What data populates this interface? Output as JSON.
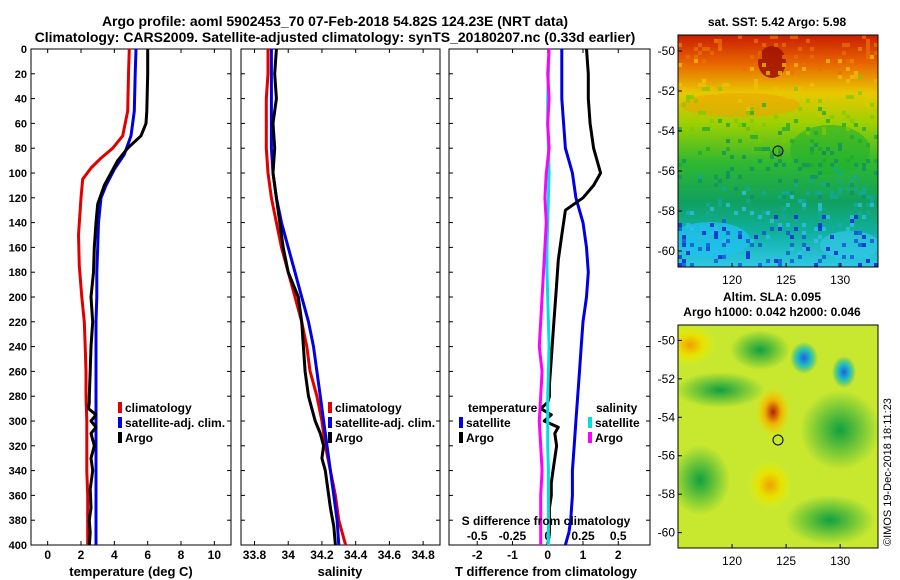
{
  "title_line1": "Argo profile: aoml 5902453_70 07-Feb-2018 54.82S 124.23E (NRT data)",
  "title_line2": "Climatology: CARS2009. Satellite-adjusted climatology: synTS_20180207.nc (0.33d earlier)",
  "watermark": "©IMOS 19-Dec-2018 18:11:23",
  "colors": {
    "climatology": "#e00000",
    "satellite": "#0000e0",
    "argo": "#000000",
    "s_satellite": "#00e0e0",
    "s_argo": "#ff00ff"
  },
  "chart_data": [
    {
      "type": "line",
      "title": "",
      "xlabel": "temperature (deg C)",
      "ylabel": "",
      "xlim": [
        -1,
        11
      ],
      "ylim": [
        400,
        0
      ],
      "xticks": [
        "0",
        "2",
        "4",
        "6",
        "8",
        "10"
      ],
      "yticks": [
        "0",
        "20",
        "40",
        "60",
        "80",
        "100",
        "120",
        "140",
        "160",
        "180",
        "200",
        "220",
        "240",
        "260",
        "280",
        "300",
        "320",
        "340",
        "360",
        "380",
        "400"
      ],
      "legend": [
        "climatology",
        "satellite-adj. clim.",
        "Argo"
      ],
      "series": [
        {
          "name": "climatology",
          "x": [
            4.9,
            4.85,
            4.8,
            4.5,
            3.9,
            3.2,
            2.6,
            2.1,
            2.0,
            1.85,
            1.9,
            2.05,
            2.2,
            2.25,
            2.3,
            2.3,
            2.35,
            2.35,
            2.35,
            2.4,
            2.4,
            2.4
          ],
          "y": [
            0,
            20,
            50,
            70,
            80,
            88,
            96,
            105,
            120,
            150,
            175,
            200,
            220,
            240,
            260,
            280,
            300,
            320,
            340,
            360,
            380,
            400
          ]
        },
        {
          "name": "satellite-adj. clim.",
          "x": [
            5.3,
            5.25,
            5.2,
            5.0,
            4.6,
            4.0,
            3.5,
            3.2,
            3.05,
            3.0,
            2.95,
            2.95,
            2.9,
            2.9,
            2.9,
            2.9,
            2.9,
            2.9,
            2.9,
            2.9,
            2.9
          ],
          "y": [
            0,
            20,
            50,
            70,
            85,
            97,
            110,
            120,
            140,
            160,
            180,
            200,
            220,
            240,
            260,
            280,
            300,
            320,
            340,
            360,
            400
          ]
        },
        {
          "name": "Argo",
          "x": [
            6.0,
            6.0,
            5.95,
            5.9,
            5.6,
            4.8,
            4.2,
            3.8,
            3.4,
            3.0,
            2.9,
            2.8,
            2.75,
            2.6,
            2.7,
            2.6,
            2.55,
            2.5,
            2.5,
            2.45,
            2.9,
            2.6,
            2.9,
            2.6,
            2.8,
            2.6,
            2.7,
            2.55,
            2.6,
            2.5,
            2.55,
            2.5
          ],
          "y": [
            0,
            20,
            50,
            60,
            70,
            80,
            90,
            100,
            110,
            125,
            140,
            160,
            180,
            200,
            220,
            240,
            260,
            280,
            285,
            290,
            295,
            300,
            305,
            310,
            320,
            330,
            340,
            355,
            370,
            380,
            390,
            400
          ]
        }
      ]
    },
    {
      "type": "line",
      "xlabel": "salinity",
      "xlim": [
        33.72,
        34.9
      ],
      "ylim": [
        400,
        0
      ],
      "xticks": [
        "33.8",
        "34",
        "34.2",
        "34.4",
        "34.6",
        "34.8"
      ],
      "legend": [
        "climatology",
        "satellite-adj. clim.",
        "Argo"
      ],
      "series": [
        {
          "name": "climatology",
          "x": [
            33.88,
            33.88,
            33.87,
            33.87,
            33.87,
            33.88,
            33.9,
            33.93,
            33.96,
            34.0,
            34.04,
            34.08,
            34.11,
            34.13,
            34.17,
            34.2,
            34.22,
            34.25,
            34.28,
            34.3,
            34.32,
            34.34
          ],
          "y": [
            0,
            20,
            40,
            60,
            80,
            100,
            120,
            140,
            160,
            180,
            200,
            220,
            240,
            260,
            280,
            300,
            320,
            340,
            360,
            380,
            390,
            400
          ]
        },
        {
          "name": "satellite-adj. clim.",
          "x": [
            33.9,
            33.9,
            33.9,
            33.9,
            33.9,
            33.91,
            33.93,
            33.96,
            34.0,
            34.04,
            34.08,
            34.12,
            34.15,
            34.17,
            34.19,
            34.21,
            34.23,
            34.25,
            34.27,
            34.29,
            34.3
          ],
          "y": [
            0,
            20,
            40,
            60,
            80,
            100,
            120,
            140,
            160,
            180,
            200,
            220,
            240,
            260,
            280,
            300,
            320,
            340,
            360,
            380,
            400
          ]
        },
        {
          "name": "Argo",
          "x": [
            33.93,
            33.92,
            33.93,
            33.91,
            33.92,
            33.91,
            33.93,
            33.95,
            33.97,
            34.0,
            34.06,
            34.08,
            34.09,
            34.1,
            34.12,
            34.16,
            34.19,
            34.21,
            34.2,
            34.22,
            34.24,
            34.25,
            34.27,
            34.28
          ],
          "y": [
            0,
            20,
            40,
            60,
            80,
            100,
            120,
            140,
            160,
            180,
            200,
            220,
            240,
            260,
            280,
            300,
            310,
            320,
            330,
            340,
            360,
            370,
            385,
            400
          ]
        }
      ]
    },
    {
      "type": "line",
      "xlabel": "T difference from climatology",
      "top_xlabel": "S difference from climatology",
      "xlim": [
        -2.8,
        2.9
      ],
      "ylim": [
        400,
        0
      ],
      "xticks": [
        "-2",
        "-1",
        "0",
        "1",
        "2"
      ],
      "top_xticks": [
        "-0.5",
        "-0.25",
        "0",
        "0.25",
        "0.5"
      ],
      "legend_temperature": {
        "title": "temperature",
        "items": [
          "satellite",
          "Argo"
        ]
      },
      "legend_salinity": {
        "title": "salinity",
        "items": [
          "satellite",
          "Argo"
        ]
      },
      "series": [
        {
          "name": "T satellite",
          "x": [
            0.4,
            0.4,
            0.4,
            0.45,
            0.5,
            0.7,
            0.8,
            1.0,
            1.1,
            1.15,
            1.1,
            1.0,
            0.95,
            0.9,
            0.85,
            0.8,
            0.75,
            0.7,
            0.7,
            0.65,
            0.6,
            0.55,
            0.5
          ],
          "y": [
            0,
            20,
            40,
            60,
            80,
            100,
            120,
            140,
            160,
            180,
            200,
            220,
            240,
            260,
            280,
            300,
            320,
            340,
            360,
            380,
            390,
            395,
            400
          ]
        },
        {
          "name": "T Argo",
          "x": [
            1.1,
            1.15,
            1.15,
            1.2,
            1.3,
            1.5,
            1.3,
            1.0,
            0.5,
            0.4,
            0.3,
            0.25,
            0.2,
            0.15,
            0.1,
            0.05,
            0.05,
            0.0,
            -0.2,
            0.1,
            -0.1,
            0.3,
            0.2,
            0.25,
            0.2,
            0.15,
            0.1,
            0.1,
            0.05,
            0.05,
            0.0
          ],
          "y": [
            0,
            20,
            40,
            60,
            80,
            100,
            110,
            120,
            130,
            150,
            170,
            190,
            210,
            230,
            250,
            270,
            280,
            285,
            290,
            295,
            300,
            305,
            310,
            320,
            330,
            340,
            350,
            360,
            370,
            390,
            400
          ]
        },
        {
          "name": "S satellite",
          "x": [
            0.01,
            0.005,
            0.0,
            0.0,
            0.005,
            0.01,
            0.005,
            0.0,
            -0.005,
            -0.005,
            0.0,
            0.005,
            0.01,
            0.005,
            0.0,
            0.0,
            0.0,
            0.005,
            0.005,
            0.005
          ],
          "y": [
            0,
            20,
            40,
            60,
            80,
            100,
            120,
            140,
            160,
            180,
            200,
            220,
            240,
            260,
            280,
            300,
            320,
            340,
            360,
            400
          ]
        },
        {
          "name": "S Argo",
          "x": [
            0.01,
            0.0,
            0.01,
            0.0,
            0.01,
            -0.01,
            -0.02,
            -0.01,
            -0.02,
            -0.03,
            -0.04,
            -0.05,
            -0.06,
            -0.04,
            -0.05,
            -0.06,
            -0.05,
            -0.04,
            -0.05,
            -0.05,
            -0.05
          ],
          "y": [
            0,
            20,
            40,
            60,
            80,
            100,
            120,
            140,
            160,
            180,
            200,
            220,
            240,
            260,
            280,
            300,
            320,
            340,
            360,
            380,
            400
          ]
        }
      ]
    },
    {
      "type": "heatmap",
      "title": "sat. SST: 5.42 Argo: 5.98",
      "xticks": [
        "120",
        "125",
        "130"
      ],
      "yticks": [
        "-50",
        "-52",
        "-54",
        "-56",
        "-58",
        "-60"
      ],
      "xlim": [
        115,
        133.5
      ],
      "ylim": [
        -60.8,
        -49.2
      ],
      "marker": {
        "lon": 124.23,
        "lat": -54.82
      }
    },
    {
      "type": "heatmap",
      "title": "Altim. SLA: 0.095",
      "subtitle": "Argo h1000: 0.042 h2000: 0.046",
      "xticks": [
        "120",
        "125",
        "130"
      ],
      "yticks": [
        "-50",
        "-52",
        "-54",
        "-56",
        "-58",
        "-60"
      ],
      "xlim": [
        115,
        133.5
      ],
      "ylim": [
        -60.8,
        -49.2
      ],
      "marker": {
        "lon": 124.23,
        "lat": -54.82
      }
    }
  ]
}
